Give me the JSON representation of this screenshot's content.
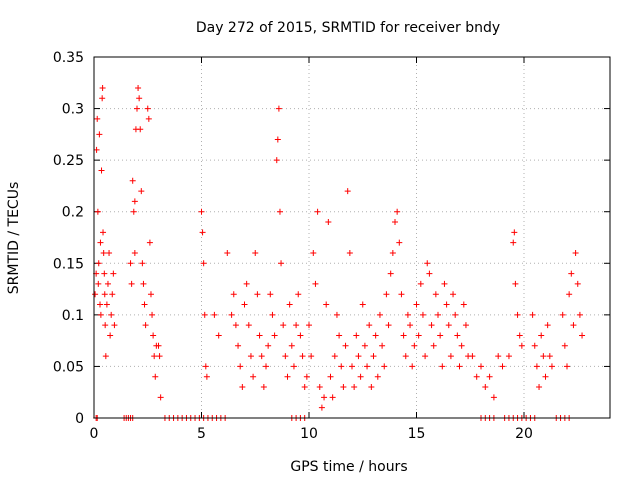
{
  "chart_data": {
    "type": "scatter",
    "title": "Day 272 of 2015, SRMTID for receiver bndy",
    "xlabel": "GPS time / hours",
    "ylabel": "SRMTID / TECUs",
    "xlim": [
      0,
      24
    ],
    "ylim": [
      0,
      0.35
    ],
    "xticks": [
      0,
      5,
      10,
      15,
      20
    ],
    "yticks": [
      0,
      0.05,
      0.1,
      0.15,
      0.2,
      0.25,
      0.3,
      0.35
    ],
    "ytick_labels": [
      "0",
      "0.05",
      "0.1",
      "0.15",
      "0.2",
      "0.25",
      "0.3",
      "0.35"
    ],
    "xtick_labels": [
      "0",
      "5",
      "10",
      "15",
      "20"
    ],
    "grid": true,
    "legend": "none",
    "marker": "+",
    "color": "#ff0000",
    "series": [
      {
        "name": "SRMTID",
        "points": [
          [
            0.05,
            0.12
          ],
          [
            0.1,
            0.14
          ],
          [
            0.12,
            0.26
          ],
          [
            0.15,
            0.29
          ],
          [
            0.18,
            0.2
          ],
          [
            0.2,
            0.13
          ],
          [
            0.22,
            0.15
          ],
          [
            0.25,
            0.275
          ],
          [
            0.28,
            0.11
          ],
          [
            0.3,
            0.17
          ],
          [
            0.32,
            0.1
          ],
          [
            0.35,
            0.24
          ],
          [
            0.38,
            0.31
          ],
          [
            0.4,
            0.32
          ],
          [
            0.42,
            0.18
          ],
          [
            0.45,
            0.16
          ],
          [
            0.48,
            0.14
          ],
          [
            0.5,
            0.12
          ],
          [
            0.52,
            0.09
          ],
          [
            0.55,
            0.06
          ],
          [
            0.6,
            0.11
          ],
          [
            0.65,
            0.13
          ],
          [
            0.7,
            0.16
          ],
          [
            0.75,
            0.08
          ],
          [
            0.8,
            0.1
          ],
          [
            0.85,
            0.12
          ],
          [
            0.9,
            0.14
          ],
          [
            0.95,
            0.09
          ],
          [
            1.8,
            0.23
          ],
          [
            1.85,
            0.2
          ],
          [
            1.9,
            0.21
          ],
          [
            1.95,
            0.28
          ],
          [
            2.0,
            0.3
          ],
          [
            2.05,
            0.32
          ],
          [
            2.1,
            0.31
          ],
          [
            2.15,
            0.28
          ],
          [
            2.2,
            0.22
          ],
          [
            2.25,
            0.15
          ],
          [
            2.3,
            0.13
          ],
          [
            2.35,
            0.11
          ],
          [
            2.4,
            0.09
          ],
          [
            2.5,
            0.3
          ],
          [
            2.55,
            0.29
          ],
          [
            2.6,
            0.17
          ],
          [
            2.65,
            0.12
          ],
          [
            2.7,
            0.1
          ],
          [
            2.75,
            0.08
          ],
          [
            2.8,
            0.06
          ],
          [
            2.85,
            0.04
          ],
          [
            2.9,
            0.07
          ],
          [
            3.0,
            0.07
          ],
          [
            3.05,
            0.06
          ],
          [
            3.1,
            0.02
          ],
          [
            1.7,
            0.15
          ],
          [
            1.75,
            0.13
          ],
          [
            1.9,
            0.16
          ],
          [
            5.0,
            0.2
          ],
          [
            5.05,
            0.18
          ],
          [
            5.1,
            0.15
          ],
          [
            5.15,
            0.1
          ],
          [
            5.2,
            0.05
          ],
          [
            5.25,
            0.04
          ],
          [
            5.6,
            0.1
          ],
          [
            5.8,
            0.08
          ],
          [
            6.2,
            0.16
          ],
          [
            6.4,
            0.1
          ],
          [
            6.5,
            0.12
          ],
          [
            6.6,
            0.09
          ],
          [
            6.7,
            0.07
          ],
          [
            6.8,
            0.05
          ],
          [
            6.9,
            0.03
          ],
          [
            7.0,
            0.11
          ],
          [
            7.1,
            0.13
          ],
          [
            7.2,
            0.09
          ],
          [
            7.3,
            0.06
          ],
          [
            7.4,
            0.04
          ],
          [
            7.5,
            0.16
          ],
          [
            7.6,
            0.12
          ],
          [
            7.7,
            0.08
          ],
          [
            7.8,
            0.06
          ],
          [
            7.9,
            0.03
          ],
          [
            8.0,
            0.05
          ],
          [
            8.1,
            0.07
          ],
          [
            8.2,
            0.12
          ],
          [
            8.3,
            0.1
          ],
          [
            8.4,
            0.08
          ],
          [
            8.5,
            0.25
          ],
          [
            8.55,
            0.27
          ],
          [
            8.6,
            0.3
          ],
          [
            8.65,
            0.2
          ],
          [
            8.7,
            0.15
          ],
          [
            8.8,
            0.09
          ],
          [
            8.9,
            0.06
          ],
          [
            9.0,
            0.04
          ],
          [
            9.1,
            0.11
          ],
          [
            9.2,
            0.07
          ],
          [
            9.3,
            0.05
          ],
          [
            9.4,
            0.09
          ],
          [
            9.5,
            0.12
          ],
          [
            9.6,
            0.08
          ],
          [
            9.7,
            0.06
          ],
          [
            9.8,
            0.03
          ],
          [
            9.9,
            0.04
          ],
          [
            10.0,
            0.09
          ],
          [
            10.1,
            0.06
          ],
          [
            10.2,
            0.16
          ],
          [
            10.3,
            0.13
          ],
          [
            10.4,
            0.2
          ],
          [
            10.5,
            0.03
          ],
          [
            10.6,
            0.01
          ],
          [
            10.7,
            0.02
          ],
          [
            10.8,
            0.11
          ],
          [
            10.9,
            0.19
          ],
          [
            11.0,
            0.04
          ],
          [
            11.1,
            0.02
          ],
          [
            11.2,
            0.06
          ],
          [
            11.3,
            0.1
          ],
          [
            11.4,
            0.08
          ],
          [
            11.5,
            0.05
          ],
          [
            11.6,
            0.03
          ],
          [
            11.7,
            0.07
          ],
          [
            11.8,
            0.22
          ],
          [
            11.9,
            0.16
          ],
          [
            12.0,
            0.05
          ],
          [
            12.1,
            0.03
          ],
          [
            12.2,
            0.08
          ],
          [
            12.3,
            0.06
          ],
          [
            12.4,
            0.04
          ],
          [
            12.5,
            0.11
          ],
          [
            12.6,
            0.07
          ],
          [
            12.7,
            0.05
          ],
          [
            12.8,
            0.09
          ],
          [
            12.9,
            0.03
          ],
          [
            13.0,
            0.06
          ],
          [
            13.1,
            0.08
          ],
          [
            13.2,
            0.04
          ],
          [
            13.3,
            0.1
          ],
          [
            13.4,
            0.07
          ],
          [
            13.5,
            0.05
          ],
          [
            13.6,
            0.12
          ],
          [
            13.7,
            0.09
          ],
          [
            13.8,
            0.14
          ],
          [
            13.9,
            0.16
          ],
          [
            14.0,
            0.19
          ],
          [
            14.1,
            0.2
          ],
          [
            14.2,
            0.17
          ],
          [
            14.3,
            0.12
          ],
          [
            14.4,
            0.08
          ],
          [
            14.5,
            0.06
          ],
          [
            14.6,
            0.1
          ],
          [
            14.7,
            0.09
          ],
          [
            14.8,
            0.05
          ],
          [
            14.9,
            0.07
          ],
          [
            15.0,
            0.11
          ],
          [
            15.1,
            0.08
          ],
          [
            15.2,
            0.13
          ],
          [
            15.3,
            0.1
          ],
          [
            15.4,
            0.06
          ],
          [
            15.5,
            0.15
          ],
          [
            15.6,
            0.14
          ],
          [
            15.7,
            0.09
          ],
          [
            15.8,
            0.07
          ],
          [
            15.9,
            0.12
          ],
          [
            16.0,
            0.1
          ],
          [
            16.1,
            0.08
          ],
          [
            16.2,
            0.05
          ],
          [
            16.3,
            0.13
          ],
          [
            16.4,
            0.11
          ],
          [
            16.5,
            0.09
          ],
          [
            16.6,
            0.06
          ],
          [
            16.7,
            0.12
          ],
          [
            16.8,
            0.1
          ],
          [
            16.9,
            0.08
          ],
          [
            17.0,
            0.05
          ],
          [
            17.1,
            0.07
          ],
          [
            17.2,
            0.11
          ],
          [
            17.3,
            0.09
          ],
          [
            17.4,
            0.06
          ],
          [
            17.6,
            0.06
          ],
          [
            17.8,
            0.04
          ],
          [
            18.0,
            0.05
          ],
          [
            18.2,
            0.03
          ],
          [
            18.4,
            0.04
          ],
          [
            18.6,
            0.02
          ],
          [
            18.8,
            0.06
          ],
          [
            19.0,
            0.05
          ],
          [
            19.3,
            0.06
          ],
          [
            19.5,
            0.17
          ],
          [
            19.55,
            0.18
          ],
          [
            19.6,
            0.13
          ],
          [
            19.7,
            0.1
          ],
          [
            19.8,
            0.08
          ],
          [
            19.9,
            0.07
          ],
          [
            20.4,
            0.1
          ],
          [
            20.5,
            0.07
          ],
          [
            20.6,
            0.05
          ],
          [
            20.7,
            0.03
          ],
          [
            20.8,
            0.08
          ],
          [
            20.9,
            0.06
          ],
          [
            21.0,
            0.04
          ],
          [
            21.1,
            0.09
          ],
          [
            21.2,
            0.06
          ],
          [
            21.3,
            0.05
          ],
          [
            21.8,
            0.1
          ],
          [
            21.9,
            0.07
          ],
          [
            22.0,
            0.05
          ],
          [
            22.1,
            0.12
          ],
          [
            22.2,
            0.14
          ],
          [
            22.3,
            0.09
          ],
          [
            22.4,
            0.16
          ],
          [
            22.5,
            0.13
          ],
          [
            22.6,
            0.1
          ],
          [
            22.7,
            0.08
          ]
        ]
      }
    ],
    "zero_points": [
      0.1,
      0.15,
      1.4,
      1.5,
      1.6,
      1.7,
      1.8,
      3.3,
      3.5,
      3.7,
      3.9,
      4.1,
      4.3,
      4.5,
      4.7,
      4.9,
      5.1,
      5.3,
      5.5,
      5.7,
      5.9,
      6.1,
      9.2,
      9.4,
      9.6,
      9.8,
      18.0,
      18.2,
      18.4,
      18.6,
      19.1,
      19.3,
      19.5,
      19.7,
      19.9,
      20.1,
      20.3,
      20.5,
      21.5,
      21.7,
      21.9,
      22.1
    ]
  }
}
